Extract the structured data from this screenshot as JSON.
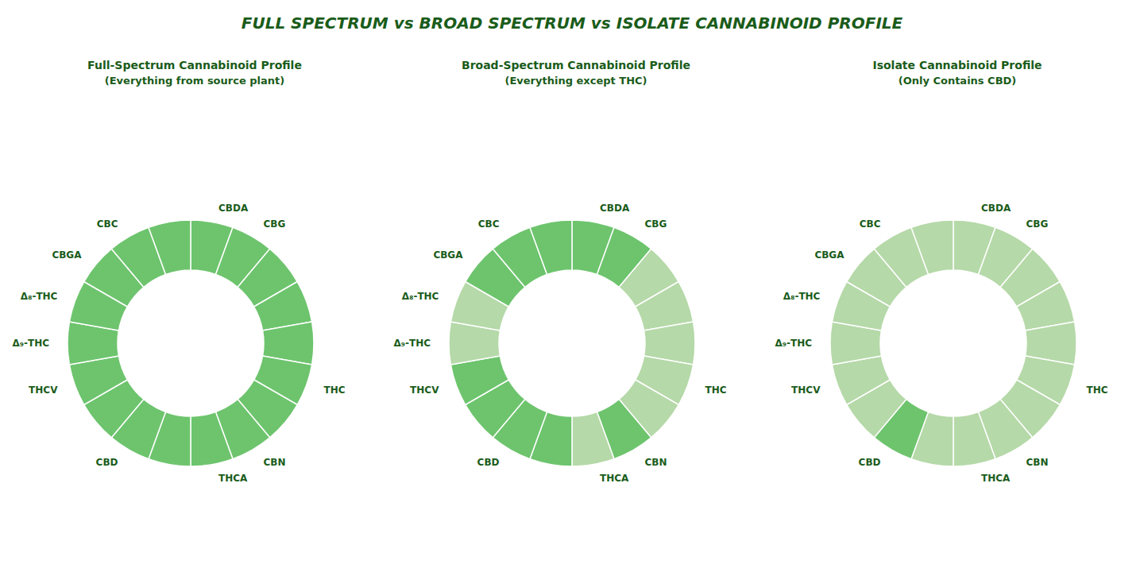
{
  "title": "FULL SPECTRUM vs BROAD SPECTRUM vs ISOLATE CANNABINOID PROFILE",
  "chart_data": [
    {
      "type": "pie",
      "title": "Full-Spectrum Cannabinoid Profile",
      "subtitle": "(Everything from source plant)",
      "categories": [
        "CBDA",
        "CBG",
        null,
        null,
        null,
        "THC",
        null,
        "CBN",
        "THCA",
        null,
        "CBD",
        null,
        "THCV",
        "Δ₉-THC",
        "Δ₈-THC",
        "CBGA",
        "CBC",
        null
      ],
      "values": [
        1,
        1,
        1,
        1,
        1,
        1,
        1,
        1,
        1,
        1,
        1,
        1,
        1,
        1,
        1,
        1,
        1,
        1
      ],
      "colors": [
        "#6dc46d",
        "#6dc46d",
        "#6dc46d",
        "#6dc46d",
        "#6dc46d",
        "#6dc46d",
        "#6dc46d",
        "#6dc46d",
        "#6dc46d",
        "#6dc46d",
        "#6dc46d",
        "#6dc46d",
        "#6dc46d",
        "#6dc46d",
        "#6dc46d",
        "#6dc46d",
        "#6dc46d",
        "#6dc46d"
      ]
    },
    {
      "type": "pie",
      "title": "Broad-Spectrum Cannabinoid Profile",
      "subtitle": "(Everything except THC)",
      "categories": [
        "CBDA",
        "CBG",
        null,
        null,
        null,
        "THC",
        null,
        "CBN",
        "THCA",
        null,
        "CBD",
        null,
        "THCV",
        "Δ₉-THC",
        "Δ₈-THC",
        "CBGA",
        "CBC",
        null
      ],
      "values": [
        1,
        1,
        1,
        1,
        1,
        1,
        1,
        1,
        1,
        1,
        1,
        1,
        1,
        1,
        1,
        1,
        1,
        1
      ],
      "colors": [
        "#6dc46d",
        "#6dc46d",
        "#b5d9a8",
        "#b5d9a8",
        "#b5d9a8",
        "#b5d9a8",
        "#b5d9a8",
        "#6dc46d",
        "#b5d9a8",
        "#6dc46d",
        "#6dc46d",
        "#6dc46d",
        "#6dc46d",
        "#b5d9a8",
        "#b5d9a8",
        "#6dc46d",
        "#6dc46d",
        "#6dc46d"
      ]
    },
    {
      "type": "pie",
      "title": "Isolate Cannabinoid Profile",
      "subtitle": "(Only Contains CBD)",
      "categories": [
        "CBDA",
        "CBG",
        null,
        null,
        null,
        "THC",
        null,
        "CBN",
        "THCA",
        null,
        "CBD",
        null,
        "THCV",
        "Δ₉-THC",
        "Δ₈-THC",
        "CBGA",
        "CBC",
        null
      ],
      "values": [
        1,
        1,
        1,
        1,
        1,
        1,
        1,
        1,
        1,
        1,
        1,
        1,
        1,
        1,
        1,
        1,
        1,
        1
      ],
      "colors": [
        "#b5d9a8",
        "#b5d9a8",
        "#b5d9a8",
        "#b5d9a8",
        "#b5d9a8",
        "#b5d9a8",
        "#b5d9a8",
        "#b5d9a8",
        "#b5d9a8",
        "#b5d9a8",
        "#6dc46d",
        "#b5d9a8",
        "#b5d9a8",
        "#b5d9a8",
        "#b5d9a8",
        "#b5d9a8",
        "#b5d9a8",
        "#b5d9a8"
      ]
    }
  ]
}
